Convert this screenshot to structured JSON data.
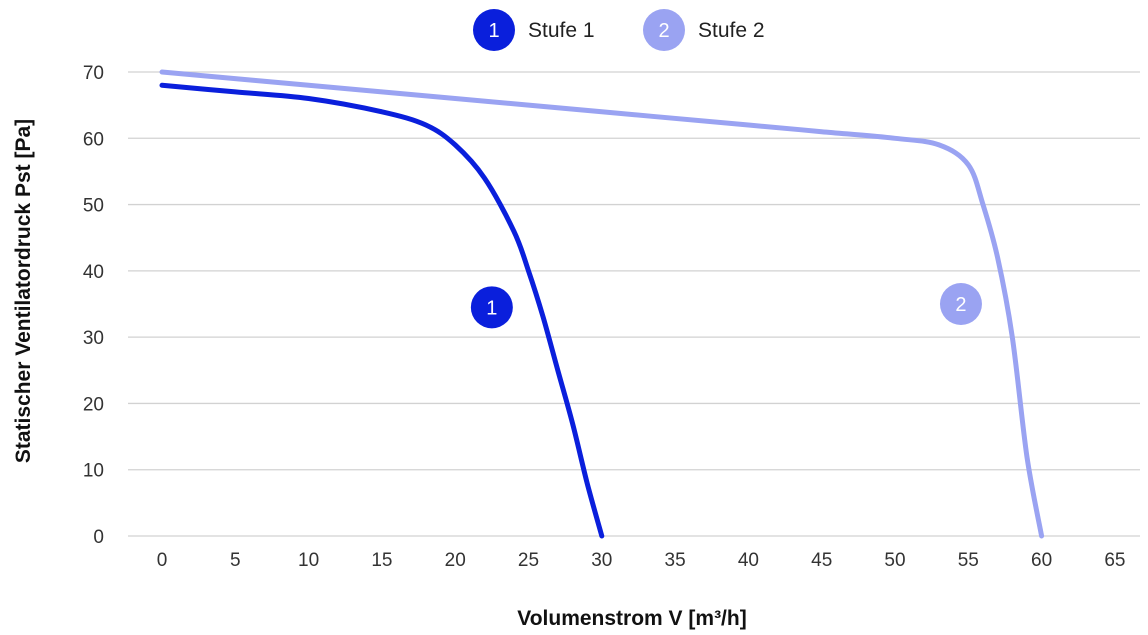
{
  "chart_data": {
    "type": "line",
    "title": "",
    "xlabel": "Volumenstrom V [m³/h]",
    "ylabel": "Statischer Ventilatordruck Pst [Pa]",
    "xlim": [
      0,
      65
    ],
    "ylim": [
      0,
      70
    ],
    "x_ticks": [
      0,
      5,
      10,
      15,
      20,
      25,
      30,
      35,
      40,
      45,
      50,
      55,
      60,
      65
    ],
    "y_ticks": [
      0,
      10,
      20,
      30,
      40,
      50,
      60,
      70
    ],
    "grid": "horizontal",
    "legend_position": "top-center",
    "series": [
      {
        "name": "Stufe 1",
        "marker_label": "1",
        "color": "#0a1fdc",
        "x": [
          0,
          5,
          10,
          15,
          18,
          20,
          22,
          24,
          25,
          26,
          27,
          28,
          29,
          30
        ],
        "y": [
          68,
          67,
          66,
          64,
          62,
          59,
          54,
          46,
          40,
          33,
          25,
          17,
          8,
          0
        ],
        "label_at": [
          22.5,
          34.5
        ]
      },
      {
        "name": "Stufe 2",
        "marker_label": "2",
        "color": "#9aa3f2",
        "x": [
          0,
          10,
          20,
          30,
          40,
          45,
          50,
          53,
          55,
          56,
          57,
          58,
          59,
          60
        ],
        "y": [
          70,
          68,
          66,
          64,
          62,
          61,
          60,
          59,
          56,
          50,
          42,
          30,
          12,
          0
        ],
        "label_at": [
          54.5,
          35
        ]
      }
    ]
  }
}
